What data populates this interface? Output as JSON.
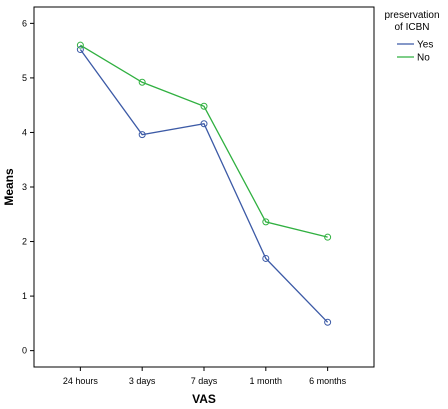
{
  "chart_data": {
    "type": "line",
    "xlabel": "VAS",
    "ylabel": "Means",
    "categories": [
      "24 hours",
      "3 days",
      "7 days",
      "1 month",
      "6 months"
    ],
    "ylim": [
      -0.3,
      6.3
    ],
    "yticks": [
      "0",
      "1",
      "2",
      "3",
      "4",
      "5",
      "6"
    ],
    "grid": false,
    "legend": {
      "title_lines": [
        "preservation",
        "of ICBN"
      ],
      "placement": "right"
    },
    "series": [
      {
        "name": "Yes",
        "color": "#3c5aa6",
        "marker": "circle",
        "values": [
          5.52,
          3.96,
          4.16,
          1.69,
          0.52
        ]
      },
      {
        "name": "No",
        "color": "#30b040",
        "marker": "circle",
        "values": [
          5.6,
          4.92,
          4.48,
          2.36,
          2.08
        ]
      }
    ]
  }
}
